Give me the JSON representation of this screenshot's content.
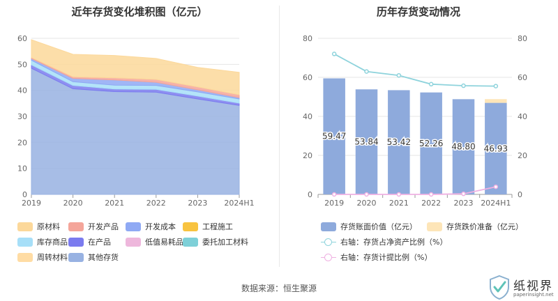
{
  "left_chart": {
    "title": "近年存货变化堆积图（亿元）",
    "legend": [
      {
        "label": "原材料",
        "color": "#fcd89a"
      },
      {
        "label": "开发产品",
        "color": "#f4a59a"
      },
      {
        "label": "开发成本",
        "color": "#8fa9f4"
      },
      {
        "label": "工程施工",
        "color": "#f8c340"
      },
      {
        "label": "库存商品",
        "color": "#a7dff8"
      },
      {
        "label": "在产品",
        "color": "#7b7bef"
      },
      {
        "label": "低值易耗品",
        "color": "#eeb7dc"
      },
      {
        "label": "委托加工材料",
        "color": "#7ed0d8"
      },
      {
        "label": "周转材料",
        "color": "#ffdca4"
      },
      {
        "label": "其他存货",
        "color": "#98b2e2"
      }
    ]
  },
  "right_chart": {
    "title": "历年存货变动情况",
    "legend": [
      {
        "label": "存货账面价值（亿元）",
        "color": "#8eaadc",
        "kind": "bar"
      },
      {
        "label": "存货跌价准备（亿元）",
        "color": "#fde5b8",
        "kind": "bar"
      },
      {
        "label": "右轴：存货占净资产比例（%）",
        "color": "#8ed3dc",
        "kind": "line"
      },
      {
        "label": "右轴：存货计提比例（%）",
        "color": "#efb0e2",
        "kind": "line"
      }
    ]
  },
  "chart_data": [
    {
      "type": "area",
      "title": "近年存货变化堆积图（亿元）",
      "x": [
        "2019",
        "2020",
        "2021",
        "2022",
        "2023",
        "2024H1"
      ],
      "ylim": [
        0,
        60
      ],
      "yticks": [
        0,
        10,
        20,
        30,
        40,
        50,
        60
      ],
      "stacked": true,
      "grid": true,
      "legend_position": "bottom",
      "series": [
        {
          "name": "其他存货",
          "values": [
            48.5,
            40.6,
            39.5,
            39.3,
            36.7,
            34.2
          ]
        },
        {
          "name": "在产品",
          "values": [
            1.3,
            1.3,
            1.0,
            1.1,
            1.1,
            0.9
          ]
        },
        {
          "name": "库存商品",
          "values": [
            1.8,
            1.4,
            1.5,
            1.5,
            1.6,
            1.6
          ]
        },
        {
          "name": "开发成本",
          "values": [
            0.6,
            1.3,
            2.0,
            1.2,
            0.8,
            0.5
          ]
        },
        {
          "name": "开发产品",
          "values": [
            0.4,
            0.6,
            0.8,
            1.1,
            1.1,
            1.1
          ]
        },
        {
          "name": "委托加工材料",
          "values": [
            0.0,
            0.0,
            0.0,
            0.0,
            0.0,
            0.0
          ]
        },
        {
          "name": "低值易耗品",
          "values": [
            0.0,
            0.0,
            0.0,
            0.0,
            0.0,
            0.0
          ]
        },
        {
          "name": "工程施工",
          "values": [
            0.0,
            0.0,
            0.0,
            0.0,
            0.0,
            0.0
          ]
        },
        {
          "name": "周转材料",
          "values": [
            0.0,
            0.0,
            0.0,
            0.0,
            0.0,
            0.0
          ]
        },
        {
          "name": "原材料",
          "values": [
            6.87,
            8.64,
            8.62,
            8.06,
            7.5,
            8.63
          ]
        }
      ]
    },
    {
      "type": "bar",
      "title": "历年存货变动情况",
      "categories": [
        "2019",
        "2020",
        "2021",
        "2022",
        "2023",
        "2024H1"
      ],
      "ylim": [
        0,
        80
      ],
      "yticks": [
        0,
        20,
        40,
        60,
        80
      ],
      "y2lim": [
        0,
        80
      ],
      "y2ticks": [
        0,
        20,
        40,
        60,
        80
      ],
      "stacked": true,
      "legend_position": "bottom",
      "series": [
        {
          "name": "存货账面价值（亿元）",
          "type": "bar",
          "values": [
            59.47,
            53.84,
            53.42,
            52.26,
            48.8,
            46.93
          ],
          "labels": [
            "59.47",
            "53.84",
            "53.42",
            "52.26",
            "48.80",
            "46.93"
          ]
        },
        {
          "name": "存货跌价准备（亿元）",
          "type": "bar",
          "values": [
            0.0,
            0.0,
            0.0,
            0.0,
            0.0,
            1.9
          ]
        },
        {
          "name": "右轴：存货占净资产比例（%）",
          "type": "line",
          "axis": "right",
          "values": [
            72,
            63,
            61,
            56.5,
            55.7,
            55.5
          ]
        },
        {
          "name": "右轴：存货计提比例（%）",
          "type": "line",
          "axis": "right",
          "values": [
            0,
            0,
            0,
            0,
            0.3,
            3.9
          ]
        }
      ]
    }
  ],
  "footer": {
    "source": "数据来源：恒生聚源"
  },
  "logo": {
    "name": "纸视界",
    "url": "paperinsight.net"
  }
}
